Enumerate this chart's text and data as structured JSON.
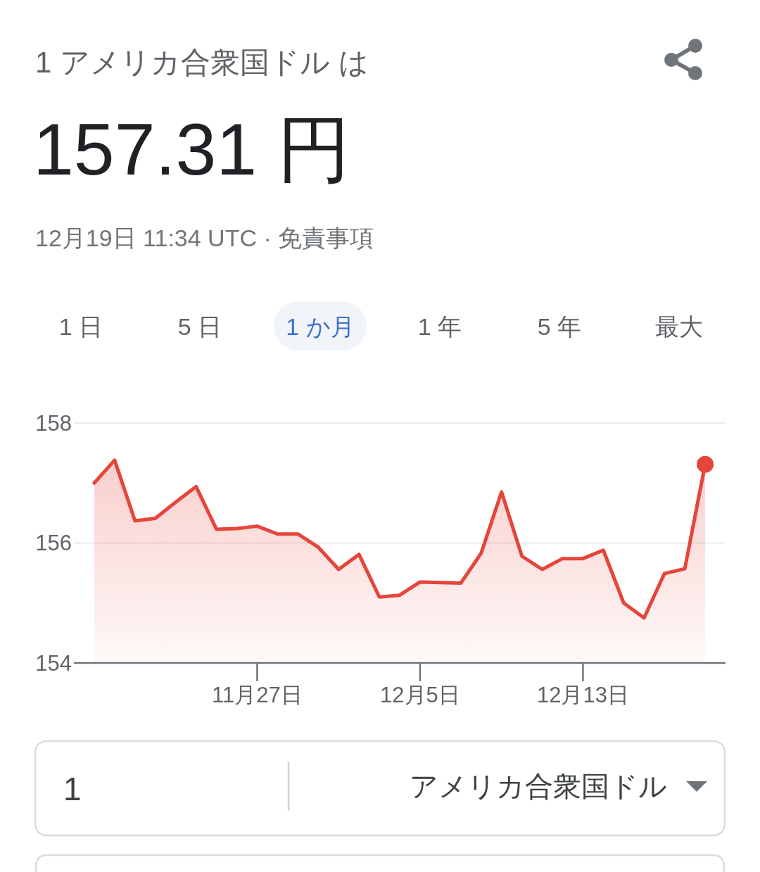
{
  "chart_data": {
    "type": "area",
    "title": "1 アメリカ合衆国ドル は",
    "subtitle": "157.31 円",
    "annotations": [
      "12月19日 11:34 UTC · 免責事項",
      "1 日",
      "5 日",
      "1 か月",
      "1 年",
      "5 年",
      "最大",
      "1",
      "アメリカ合衆国ドル"
    ],
    "x": [
      "--11-19",
      "--11-20",
      "--11-21",
      "--11-22",
      "--11-23",
      "--11-24",
      "--11-25",
      "--11-26",
      "--11-27",
      "--11-28",
      "--11-29",
      "--11-30",
      "--12-01",
      "--12-02",
      "--12-03",
      "--12-04",
      "--12-05",
      "--12-06",
      "--12-07",
      "--12-08",
      "--12-09",
      "--12-10",
      "--12-11",
      "--12-12",
      "--12-13",
      "--12-14",
      "--12-15",
      "--12-16",
      "--12-17",
      "--12-18",
      "--12-19"
    ],
    "series": [
      {
        "color": "#e5453a",
        "values": [
          157.0,
          157.38,
          156.37,
          156.41,
          156.68,
          156.94,
          156.23,
          156.24,
          156.28,
          156.15,
          156.15,
          155.93,
          155.56,
          155.81,
          155.1,
          155.13,
          155.35,
          155.34,
          155.33,
          155.83,
          156.85,
          155.78,
          155.56,
          155.74,
          155.74,
          155.88,
          155.0,
          154.75,
          155.49,
          155.57,
          157.31
        ]
      },
      {
        "type": "scatter",
        "x": [
          "--12-19"
        ],
        "color": "#e5453a",
        "values": [
          157.31
        ]
      }
    ],
    "xlim": [
      "--11-18",
      "--12-20"
    ],
    "xticks": [
      {
        "value": "--11-27",
        "label": "11月27日"
      },
      {
        "value": "--12-05",
        "label": "12月5日"
      },
      {
        "value": "--12-13",
        "label": "12月13日"
      }
    ],
    "ylim": [
      154,
      158
    ],
    "yticks": [
      154,
      156,
      158
    ],
    "grid": "y"
  }
}
